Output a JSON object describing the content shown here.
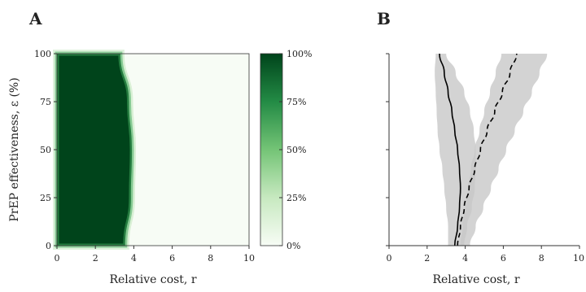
{
  "chart_data": [
    {
      "panel": "A",
      "type": "heatmap",
      "xlabel": "Relative cost, r",
      "ylabel": "PrEP effectiveness, ε (%)",
      "xlim": [
        0,
        10
      ],
      "ylim": [
        0,
        100
      ],
      "x_ticks": [
        "0",
        "2",
        "4",
        "6",
        "8",
        "10"
      ],
      "y_ticks": [
        "0",
        "25",
        "50",
        "75",
        "100"
      ],
      "colorbar": {
        "range": [
          0,
          100
        ],
        "ticks": [
          "0%",
          "25%",
          "50%",
          "75%",
          "100%"
        ],
        "low_color": "#f7fcf5",
        "high_color": "#00441b"
      },
      "boundary": {
        "description": "transition from ~100% (dark green) to ~0% (pale) in r",
        "y": [
          0,
          25,
          50,
          75,
          100
        ],
        "r": [
          3.55,
          3.85,
          3.9,
          3.75,
          3.3
        ]
      }
    },
    {
      "panel": "B",
      "type": "line",
      "xlabel": "Relative cost, r",
      "ylabel": "",
      "xlim": [
        0,
        10
      ],
      "ylim": [
        0,
        100
      ],
      "x_ticks": [
        "0",
        "2",
        "4",
        "6",
        "8",
        "10"
      ],
      "series": [
        {
          "style": "solid",
          "y": [
            0,
            10,
            20,
            30,
            40,
            50,
            60,
            70,
            80,
            90,
            100
          ],
          "x": [
            3.45,
            3.6,
            3.7,
            3.75,
            3.7,
            3.6,
            3.45,
            3.3,
            3.1,
            2.9,
            2.65
          ],
          "band_low": [
            3.1,
            3.1,
            3.0,
            2.9,
            2.8,
            2.65,
            2.55,
            2.5,
            2.45,
            2.4,
            2.45
          ],
          "band_high": [
            3.95,
            4.1,
            4.35,
            4.5,
            4.55,
            4.55,
            4.45,
            4.25,
            3.95,
            3.5,
            3.0
          ]
        },
        {
          "style": "dashed",
          "y": [
            0,
            10,
            20,
            30,
            40,
            50,
            60,
            70,
            80,
            90,
            100
          ],
          "x": [
            3.6,
            3.75,
            3.95,
            4.2,
            4.5,
            4.8,
            5.15,
            5.55,
            5.95,
            6.35,
            6.7
          ],
          "band_low": [
            3.75,
            3.85,
            4.0,
            4.15,
            4.3,
            4.5,
            4.75,
            5.0,
            5.3,
            5.6,
            5.9
          ],
          "band_high": [
            4.25,
            4.55,
            4.95,
            5.35,
            5.75,
            6.15,
            6.6,
            7.05,
            7.5,
            7.9,
            8.3
          ]
        }
      ]
    }
  ]
}
